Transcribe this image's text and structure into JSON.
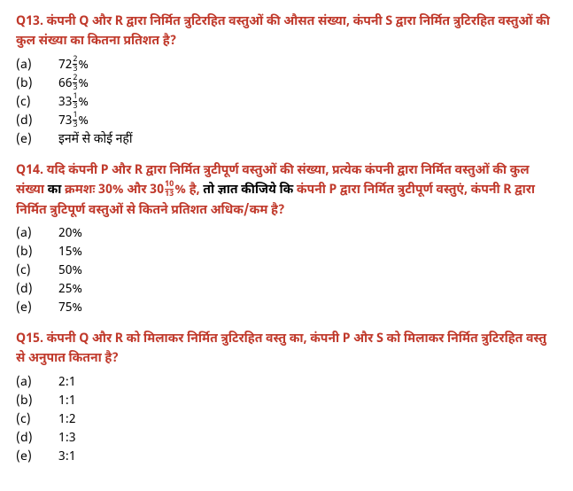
{
  "q13": {
    "label": "Q13.",
    "text_part1": "कंपनी Q और R  द्वारा निर्मित त्रुटिरहित वस्तुओं की औसत संख्या, कंपनी S द्वारा निर्मित त्रुटिरहित वस्तुओं की कुल संख्या का कितना प्रतिशत है?",
    "options": [
      {
        "label": "(a)",
        "int": "72",
        "num": "2",
        "den": "3",
        "suffix": "%"
      },
      {
        "label": "(b)",
        "int": "66",
        "num": "2",
        "den": "3",
        "suffix": "%"
      },
      {
        "label": "(c)",
        "int": "33",
        "num": "1",
        "den": "3",
        "suffix": "%"
      },
      {
        "label": "(d)",
        "int": "73",
        "num": "1",
        "den": "3",
        "suffix": "%"
      },
      {
        "label": "(e)",
        "plain": "इनमें से कोई नहीं"
      }
    ]
  },
  "q14": {
    "label": "Q14.",
    "text_part1": "यदि कंपनी P और R द्वारा निर्मित त्रुटीपूर्ण वस्तुओं की संख्या, प्रत्येक कंपनी द्वारा निर्मित वस्तुओं की कुल संख्या",
    "text_black1": " का ",
    "text_part2a": "क्रमशः 30% और 30",
    "frac_num": "10",
    "frac_den": "13",
    "text_part2b": "% है,",
    "text_black2": " तो ज्ञात कीजिये कि ",
    "text_part3": "कंपनी P द्वारा निर्मित त्रुटीपूर्ण वस्तुएं, कंपनी R द्वारा निर्मित त्रुटिपूर्ण वस्तुओं से कितने प्रतिशत अधिक/कम है?",
    "options": [
      {
        "label": "(a)",
        "plain": "20%"
      },
      {
        "label": "(b)",
        "plain": "15%"
      },
      {
        "label": "(c)",
        "plain": "50%"
      },
      {
        "label": "(d)",
        "plain": "25%"
      },
      {
        "label": "(e)",
        "plain": "75%"
      }
    ]
  },
  "q15": {
    "label": "Q15.",
    "text_part1": "कंपनी Q और R को मिलाकर निर्मित त्रुटिरहित वस्तु का, कंपनी P और S को मिलाकर निर्मित त्रुटिरहित वस्तु से अनुपात कितना है?",
    "options": [
      {
        "label": "(a)",
        "plain": "2:1"
      },
      {
        "label": "(b)",
        "plain": "1:1"
      },
      {
        "label": "(c)",
        "plain": "1:2"
      },
      {
        "label": "(d)",
        "plain": "1:3"
      },
      {
        "label": "(e)",
        "plain": "3:1"
      }
    ]
  }
}
